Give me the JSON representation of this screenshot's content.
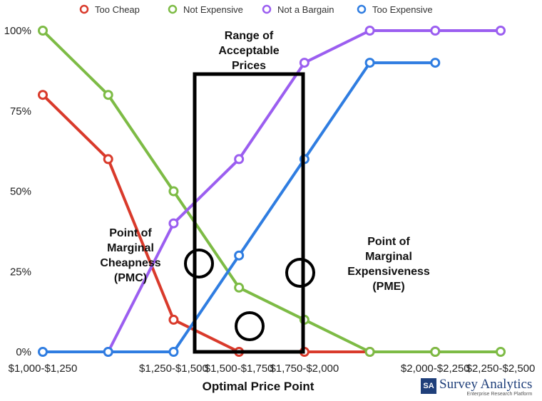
{
  "chart_data": {
    "type": "line",
    "categories": [
      "$1,000-$1,250",
      "$1,250-$1,500",
      "$1,500-$1,750",
      "$1,750-$2,000",
      "$2,000-$2,250",
      "$2,250-$2,500"
    ],
    "xlabel": "Optimal Price Point",
    "ylabel": "",
    "ylim": [
      0,
      100
    ],
    "yticks": [
      0,
      25,
      50,
      75,
      100
    ],
    "ytick_labels": [
      "0%",
      "25%",
      "50%",
      "75%",
      "100%"
    ],
    "x_positions": [
      1,
      2,
      3,
      4,
      5,
      6,
      7,
      8
    ],
    "x_tick_positions": [
      1,
      3,
      4,
      5,
      7,
      8
    ],
    "legend_position": "top",
    "grid": false,
    "series": [
      {
        "name": "Too Cheap",
        "color": "#d93a2b",
        "x": [
          1,
          2,
          3,
          4,
          5,
          6,
          7
        ],
        "values": [
          80,
          60,
          10,
          0,
          0,
          0,
          0
        ]
      },
      {
        "name": "Not Expensive",
        "color": "#7dbb45",
        "x": [
          1,
          2,
          3,
          4,
          5,
          6,
          7,
          8
        ],
        "values": [
          100,
          80,
          50,
          20,
          10,
          0,
          0,
          0
        ]
      },
      {
        "name": "Not a Bargain",
        "color": "#9b5ef0",
        "x": [
          2,
          3,
          4,
          5,
          6,
          7,
          8
        ],
        "values": [
          0,
          40,
          60,
          90,
          100,
          100,
          100
        ]
      },
      {
        "name": "Too Expensive",
        "color": "#2f7de1",
        "x": [
          1,
          2,
          3,
          4,
          5,
          6,
          7
        ],
        "values": [
          0,
          0,
          0,
          30,
          60,
          90,
          90
        ]
      }
    ],
    "annotations": {
      "range_label": [
        "Range of",
        "Acceptable",
        "Prices"
      ],
      "pmc_label": [
        "Point of",
        "Marginal",
        "Cheapness",
        "(PMC)"
      ],
      "pme_label": [
        "Point of",
        "Marginal",
        "Expensiveness",
        "(PME)"
      ]
    }
  },
  "brand": {
    "logo": "SA",
    "name": "Survey Analytics",
    "tagline": "Enterprise Research Platform"
  }
}
